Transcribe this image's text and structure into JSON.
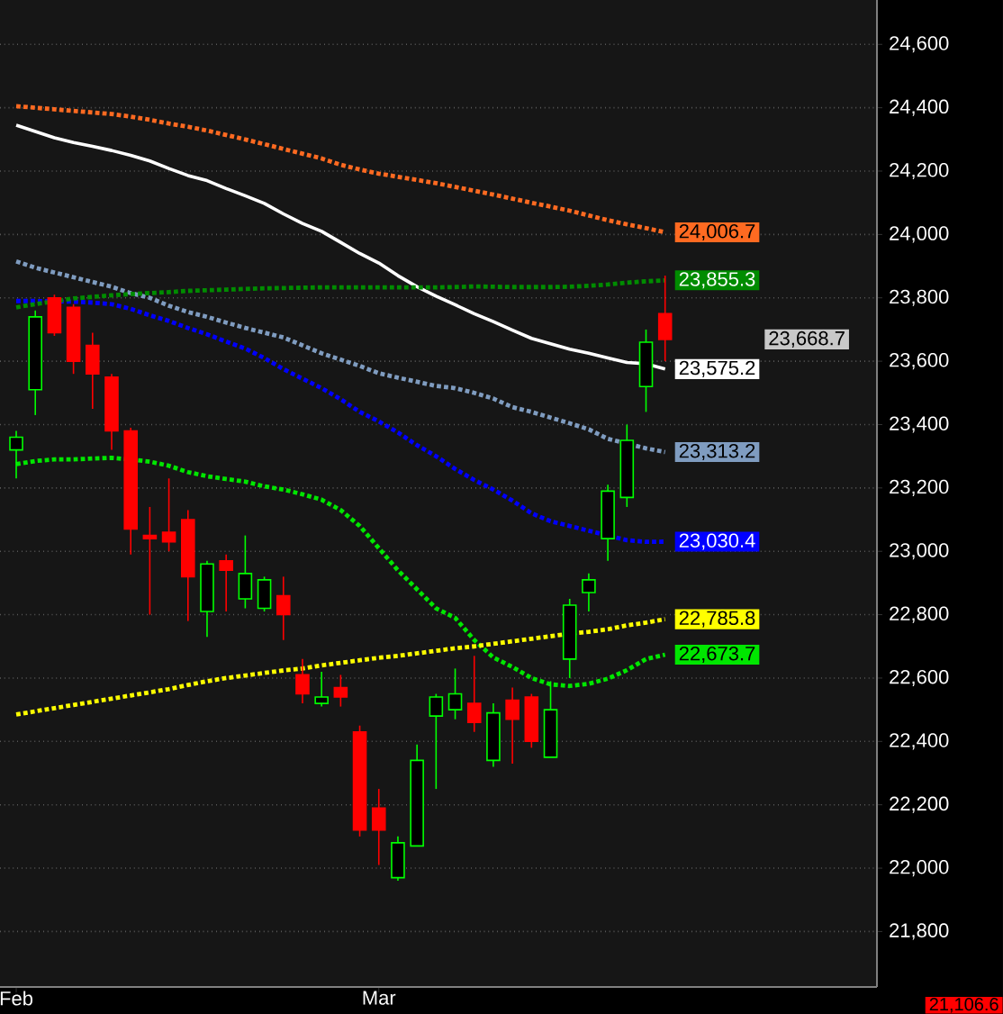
{
  "chart_data": {
    "type": "candlestick",
    "categories": [
      "Feb",
      null,
      null,
      null,
      null,
      null,
      null,
      null,
      null,
      null,
      null,
      null,
      null,
      null,
      null,
      null,
      null,
      null,
      null,
      "Mar",
      null,
      null,
      null,
      null,
      null,
      null,
      null,
      null,
      null,
      null,
      null,
      null,
      null,
      null,
      null
    ],
    "ohlc": [
      [
        23320,
        23380,
        23230,
        23360
      ],
      [
        23510,
        23760,
        23430,
        23740
      ],
      [
        23800,
        23810,
        23680,
        23690
      ],
      [
        23770,
        23780,
        23560,
        23600
      ],
      [
        23650,
        23690,
        23450,
        23560
      ],
      [
        23550,
        23560,
        23320,
        23380
      ],
      [
        23380,
        23390,
        22990,
        23070
      ],
      [
        23050,
        23140,
        22800,
        23040
      ],
      [
        23060,
        23230,
        23000,
        23030
      ],
      [
        23100,
        23130,
        22780,
        22920
      ],
      [
        22810,
        22970,
        22730,
        22960
      ],
      [
        22970,
        22990,
        22810,
        22940
      ],
      [
        22850,
        23050,
        22820,
        22930
      ],
      [
        22820,
        22920,
        22810,
        22910
      ],
      [
        22860,
        22920,
        22720,
        22800
      ],
      [
        22610,
        22660,
        22520,
        22550
      ],
      [
        22520,
        22620,
        22510,
        22540
      ],
      [
        22570,
        22610,
        22510,
        22540
      ],
      [
        22430,
        22450,
        22100,
        22120
      ],
      [
        22190,
        22250,
        22010,
        22120
      ],
      [
        21970,
        22100,
        21960,
        22080
      ],
      [
        22070,
        22390,
        22070,
        22340
      ],
      [
        22480,
        22550,
        22250,
        22540
      ],
      [
        22500,
        22630,
        22470,
        22550
      ],
      [
        22520,
        22670,
        22430,
        22460
      ],
      [
        22340,
        22520,
        22320,
        22490
      ],
      [
        22530,
        22570,
        22330,
        22470
      ],
      [
        22540,
        22550,
        22380,
        22400
      ],
      [
        22350,
        22590,
        22350,
        22500
      ],
      [
        22660,
        22850,
        22600,
        22830
      ],
      [
        22870,
        22930,
        22810,
        22910
      ],
      [
        23040,
        23210,
        22970,
        23190
      ],
      [
        23170,
        23400,
        23140,
        23350
      ],
      [
        23520,
        23700,
        23440,
        23660
      ],
      [
        23750,
        23870,
        23600,
        23668.7
      ]
    ],
    "series": [
      {
        "type": "line",
        "line_style": "dotted",
        "color": "#ff6a21",
        "values": [
          24405,
          24400,
          24395,
          24390,
          24385,
          24380,
          24372,
          24362,
          24350,
          24340,
          24328,
          24314,
          24300,
          24285,
          24270,
          24255,
          24240,
          24220,
          24205,
          24192,
          24182,
          24172,
          24162,
          24150,
          24138,
          24126,
          24113,
          24100,
          24088,
          24075,
          24060,
          24045,
          24032,
          24020,
          24006.7
        ],
        "value_labels": [
          null,
          null,
          null,
          null,
          null,
          null,
          null,
          null,
          null,
          null,
          null,
          null,
          null,
          null,
          null,
          null,
          null,
          null,
          null,
          null,
          null,
          null,
          null,
          null,
          null,
          null,
          null,
          null,
          null,
          null,
          null,
          null,
          null,
          null,
          "24,006.7"
        ]
      },
      {
        "type": "line",
        "line_style": "solid",
        "color": "#ffffff",
        "values": [
          24345,
          24325,
          24305,
          24290,
          24278,
          24265,
          24250,
          24232,
          24208,
          24186,
          24170,
          24145,
          24122,
          24098,
          24065,
          24035,
          24010,
          23975,
          23940,
          23910,
          23870,
          23835,
          23805,
          23778,
          23750,
          23725,
          23698,
          23672,
          23655,
          23638,
          23625,
          23610,
          23596,
          23592,
          23575.2
        ],
        "value_labels": [
          null,
          null,
          null,
          null,
          null,
          null,
          null,
          null,
          null,
          null,
          null,
          null,
          null,
          null,
          null,
          null,
          null,
          null,
          null,
          null,
          null,
          null,
          null,
          null,
          null,
          null,
          null,
          null,
          null,
          null,
          null,
          null,
          null,
          null,
          "23,575.2"
        ]
      },
      {
        "type": "line",
        "line_style": "dotted",
        "color": "#7f9cc0",
        "values": [
          23915,
          23895,
          23880,
          23865,
          23850,
          23835,
          23815,
          23800,
          23775,
          23755,
          23740,
          23722,
          23705,
          23690,
          23675,
          23650,
          23625,
          23605,
          23585,
          23562,
          23548,
          23535,
          23522,
          23515,
          23500,
          23482,
          23455,
          23440,
          23422,
          23404,
          23385,
          23355,
          null,
          23325,
          23313.2
        ],
        "value_labels": [
          null,
          null,
          null,
          null,
          null,
          null,
          null,
          null,
          null,
          null,
          null,
          null,
          null,
          null,
          null,
          null,
          null,
          null,
          null,
          null,
          null,
          null,
          null,
          null,
          null,
          null,
          null,
          null,
          null,
          null,
          null,
          null,
          null,
          null,
          "23,313.2"
        ]
      },
      {
        "type": "line",
        "line_style": "dotted",
        "color": "#0000ff",
        "values": [
          23790,
          23790,
          null,
          23788,
          23785,
          23780,
          23765,
          23745,
          23727,
          23705,
          23685,
          23662,
          23640,
          23610,
          23575,
          23545,
          23515,
          23480,
          23440,
          23410,
          23375,
          23335,
          23300,
          23260,
          23225,
          23195,
          23160,
          23120,
          23095,
          23080,
          23065,
          null,
          23035,
          23030,
          23030.4
        ],
        "value_labels": [
          null,
          null,
          null,
          null,
          null,
          null,
          null,
          null,
          null,
          null,
          null,
          null,
          null,
          null,
          null,
          null,
          null,
          null,
          null,
          null,
          null,
          null,
          null,
          null,
          null,
          null,
          null,
          null,
          null,
          null,
          null,
          null,
          null,
          null,
          "23,030.4"
        ]
      },
      {
        "type": "line",
        "line_style": "dotted",
        "color": "#008c00",
        "values": [
          23770,
          23780,
          null,
          23798,
          23803,
          23808,
          23812,
          23815,
          23818,
          23822,
          23824,
          23826,
          23828,
          23830,
          23831,
          23832,
          23833,
          23833,
          23833,
          23833,
          23833,
          23833,
          23833,
          23834,
          23836,
          23835,
          23834,
          23834,
          23834,
          23835,
          23838,
          23842,
          23848,
          23852,
          23855.3
        ],
        "value_labels": [
          null,
          null,
          null,
          null,
          null,
          null,
          null,
          null,
          null,
          null,
          null,
          null,
          null,
          null,
          null,
          null,
          null,
          null,
          null,
          null,
          null,
          null,
          null,
          null,
          null,
          null,
          null,
          null,
          null,
          null,
          null,
          null,
          null,
          null,
          "23,855.3"
        ]
      },
      {
        "type": "line",
        "line_style": "dotted",
        "color": "#00e600",
        "values": [
          23275,
          23285,
          23290,
          23290,
          23293,
          23295,
          23290,
          23283,
          23270,
          23250,
          23237,
          23228,
          23220,
          23205,
          23195,
          23180,
          23163,
          23130,
          23080,
          23010,
          22940,
          22880,
          22820,
          22790,
          22720,
          22665,
          22635,
          22600,
          22580,
          22575,
          22582,
          22598,
          22625,
          22660,
          22673.7
        ],
        "value_labels": [
          null,
          null,
          null,
          null,
          null,
          null,
          null,
          null,
          null,
          null,
          null,
          null,
          null,
          null,
          null,
          null,
          null,
          null,
          null,
          null,
          null,
          null,
          null,
          null,
          null,
          null,
          null,
          null,
          null,
          null,
          null,
          null,
          null,
          null,
          "22,673.7"
        ]
      },
      {
        "type": "line",
        "line_style": "dotted",
        "color": "#ffff00",
        "values": [
          22485,
          22495,
          22505,
          22515,
          22525,
          22535,
          22545,
          22555,
          22565,
          22578,
          22590,
          22600,
          22608,
          22616,
          22624,
          22630,
          22640,
          22648,
          22656,
          22664,
          22670,
          22678,
          22686,
          22694,
          22700,
          22708,
          22716,
          22724,
          22732,
          22740,
          22746,
          22754,
          22766,
          22775,
          22785.8
        ],
        "value_labels": [
          null,
          null,
          null,
          null,
          null,
          null,
          null,
          null,
          null,
          null,
          null,
          null,
          null,
          null,
          null,
          null,
          null,
          null,
          null,
          null,
          null,
          null,
          null,
          null,
          null,
          null,
          null,
          null,
          null,
          null,
          null,
          null,
          null,
          null,
          "22,785.8"
        ]
      }
    ],
    "ylim": [
      21625,
      24740
    ],
    "yticks": [
      {
        "value": 21800,
        "label": "21,800"
      },
      {
        "value": 22000,
        "label": "22,000"
      },
      {
        "value": 22200,
        "label": "22,200"
      },
      {
        "value": 22400,
        "label": "22,400"
      },
      {
        "value": 22600,
        "label": "22,600"
      },
      {
        "value": 22800,
        "label": "22,800"
      },
      {
        "value": 23000,
        "label": "23,000"
      },
      {
        "value": 23200,
        "label": "23,200"
      },
      {
        "value": 23400,
        "label": "23,400"
      },
      {
        "value": 23600,
        "label": "23,600"
      },
      {
        "value": 23800,
        "label": "23,800"
      },
      {
        "value": 24000,
        "label": "24,000"
      },
      {
        "value": 24200,
        "label": "24,200"
      },
      {
        "value": 24400,
        "label": "24,400"
      },
      {
        "value": 24600,
        "label": "24,600"
      }
    ],
    "grid": "y",
    "annotations": [
      "23,668.7",
      "21,106.6"
    ]
  }
}
